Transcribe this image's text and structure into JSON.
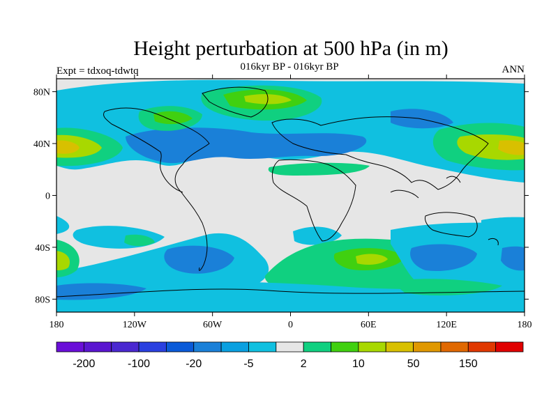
{
  "title": "Height perturbation at 500 hPa (in m)",
  "subtitle": "016kyr BP - 016kyr BP",
  "left_label": "Expt = tdxoq-tdwtq",
  "right_label": "ANN",
  "lat_ticks": [
    {
      "label": "80N",
      "value": 80
    },
    {
      "label": "40N",
      "value": 40
    },
    {
      "label": "0",
      "value": 0
    },
    {
      "label": "40S",
      "value": -40
    },
    {
      "label": "80S",
      "value": -80
    }
  ],
  "lon_ticks": [
    {
      "label": "180",
      "value": -180
    },
    {
      "label": "120W",
      "value": -120
    },
    {
      "label": "60W",
      "value": -60
    },
    {
      "label": "0",
      "value": 0
    },
    {
      "label": "60E",
      "value": 60
    },
    {
      "label": "120E",
      "value": 120
    },
    {
      "label": "180",
      "value": 180
    }
  ],
  "colors": {
    "background_field": "#e6e6e6",
    "levels": [
      "#6a0fd8",
      "#5a16d0",
      "#4a28d0",
      "#2a40e0",
      "#0a5ad8",
      "#1a80d8",
      "#0aa0e0",
      "#10c0e0",
      "#e6e6e6",
      "#10d080",
      "#40d010",
      "#a8d800",
      "#d8c000",
      "#e09800",
      "#e06800",
      "#e03800",
      "#e00000"
    ]
  },
  "colorbar": {
    "labels": [
      {
        "text": "-200",
        "boundary": 1
      },
      {
        "text": "-100",
        "boundary": 3
      },
      {
        "text": "-20",
        "boundary": 5
      },
      {
        "text": "-5",
        "boundary": 7
      },
      {
        "text": "2",
        "boundary": 9
      },
      {
        "text": "10",
        "boundary": 11
      },
      {
        "text": "50",
        "boundary": 13
      },
      {
        "text": "150",
        "boundary": 15
      }
    ]
  }
}
